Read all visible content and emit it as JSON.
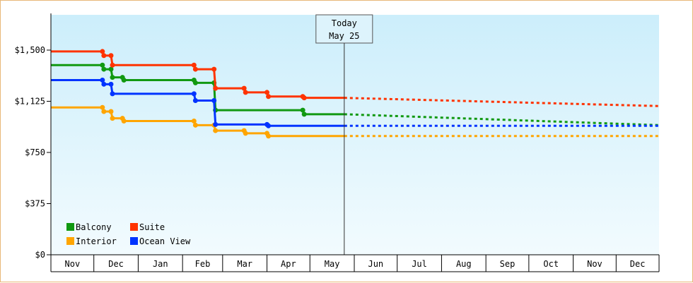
{
  "chart_data": {
    "type": "line",
    "title": "",
    "xlabel": "",
    "ylabel": "",
    "ylim": [
      0,
      1500
    ],
    "y_ticks": [
      {
        "value": 0,
        "label": "$0"
      },
      {
        "value": 375,
        "label": "$375"
      },
      {
        "value": 750,
        "label": "$750"
      },
      {
        "value": 1125,
        "label": "$1,125"
      },
      {
        "value": 1500,
        "label": "$1,500"
      }
    ],
    "x_range": [
      "Nov 1",
      "Dec 31"
    ],
    "x_ticks": [
      "Nov",
      "Dec",
      "Jan",
      "Feb",
      "Mar",
      "Apr",
      "May",
      "Jun",
      "Jul",
      "Aug",
      "Sep",
      "Oct",
      "Nov",
      "Dec"
    ],
    "today": {
      "line1": "Today",
      "line2": "May 25",
      "x": "May 25"
    },
    "grid": false,
    "legend_position": "bottom-left",
    "colors": {
      "balcony": "#119911",
      "suite": "#ff3300",
      "interior": "#ffa500",
      "ocean_view": "#0033ff",
      "plot_top": "#cceefb",
      "plot_bottom": "#f2fbfe",
      "border": "#e8b878"
    },
    "series": [
      {
        "name": "Balcony",
        "color": "#119911",
        "points": [
          [
            "Nov 1",
            1390
          ],
          [
            "Dec 7",
            1390
          ],
          [
            "Dec 8",
            1360
          ],
          [
            "Dec 13",
            1360
          ],
          [
            "Dec 14",
            1300
          ],
          [
            "Dec 21",
            1300
          ],
          [
            "Dec 22",
            1280
          ],
          [
            "Feb 9",
            1280
          ],
          [
            "Feb 10",
            1260
          ],
          [
            "Feb 23",
            1260
          ],
          [
            "Feb 24",
            1060
          ],
          [
            "Apr 26",
            1060
          ],
          [
            "Apr 27",
            1030
          ],
          [
            "May 25",
            1030
          ]
        ],
        "forecast": [
          [
            "May 25",
            1030
          ],
          [
            "Dec 31",
            950
          ]
        ]
      },
      {
        "name": "Suite",
        "color": "#ff3300",
        "points": [
          [
            "Nov 1",
            1490
          ],
          [
            "Dec 7",
            1490
          ],
          [
            "Dec 8",
            1460
          ],
          [
            "Dec 13",
            1460
          ],
          [
            "Dec 14",
            1390
          ],
          [
            "Feb 9",
            1390
          ],
          [
            "Feb 10",
            1360
          ],
          [
            "Feb 23",
            1360
          ],
          [
            "Feb 24",
            1220
          ],
          [
            "Mar 16",
            1220
          ],
          [
            "Mar 17",
            1190
          ],
          [
            "Apr 1",
            1190
          ],
          [
            "Apr 2",
            1160
          ],
          [
            "Apr 26",
            1160
          ],
          [
            "Apr 27",
            1150
          ],
          [
            "May 25",
            1150
          ]
        ],
        "forecast": [
          [
            "May 25",
            1150
          ],
          [
            "Dec 31",
            1090
          ]
        ]
      },
      {
        "name": "Interior",
        "color": "#ffa500",
        "points": [
          [
            "Nov 1",
            1080
          ],
          [
            "Dec 7",
            1080
          ],
          [
            "Dec 8",
            1050
          ],
          [
            "Dec 13",
            1050
          ],
          [
            "Dec 14",
            1000
          ],
          [
            "Dec 21",
            1000
          ],
          [
            "Dec 22",
            980
          ],
          [
            "Feb 9",
            980
          ],
          [
            "Feb 10",
            950
          ],
          [
            "Feb 23",
            950
          ],
          [
            "Feb 24",
            910
          ],
          [
            "Mar 16",
            910
          ],
          [
            "Mar 17",
            890
          ],
          [
            "Apr 1",
            890
          ],
          [
            "Apr 2",
            870
          ],
          [
            "May 25",
            870
          ]
        ],
        "forecast": [
          [
            "May 25",
            870
          ],
          [
            "Dec 31",
            870
          ]
        ]
      },
      {
        "name": "Ocean View",
        "color": "#0033ff",
        "points": [
          [
            "Nov 1",
            1280
          ],
          [
            "Dec 7",
            1280
          ],
          [
            "Dec 8",
            1250
          ],
          [
            "Dec 13",
            1250
          ],
          [
            "Dec 14",
            1180
          ],
          [
            "Feb 9",
            1180
          ],
          [
            "Feb 10",
            1130
          ],
          [
            "Feb 23",
            1130
          ],
          [
            "Feb 24",
            955
          ],
          [
            "Apr 1",
            955
          ],
          [
            "Apr 2",
            945
          ],
          [
            "May 25",
            945
          ]
        ],
        "forecast": [
          [
            "May 25",
            945
          ],
          [
            "Dec 31",
            945
          ]
        ]
      }
    ]
  }
}
